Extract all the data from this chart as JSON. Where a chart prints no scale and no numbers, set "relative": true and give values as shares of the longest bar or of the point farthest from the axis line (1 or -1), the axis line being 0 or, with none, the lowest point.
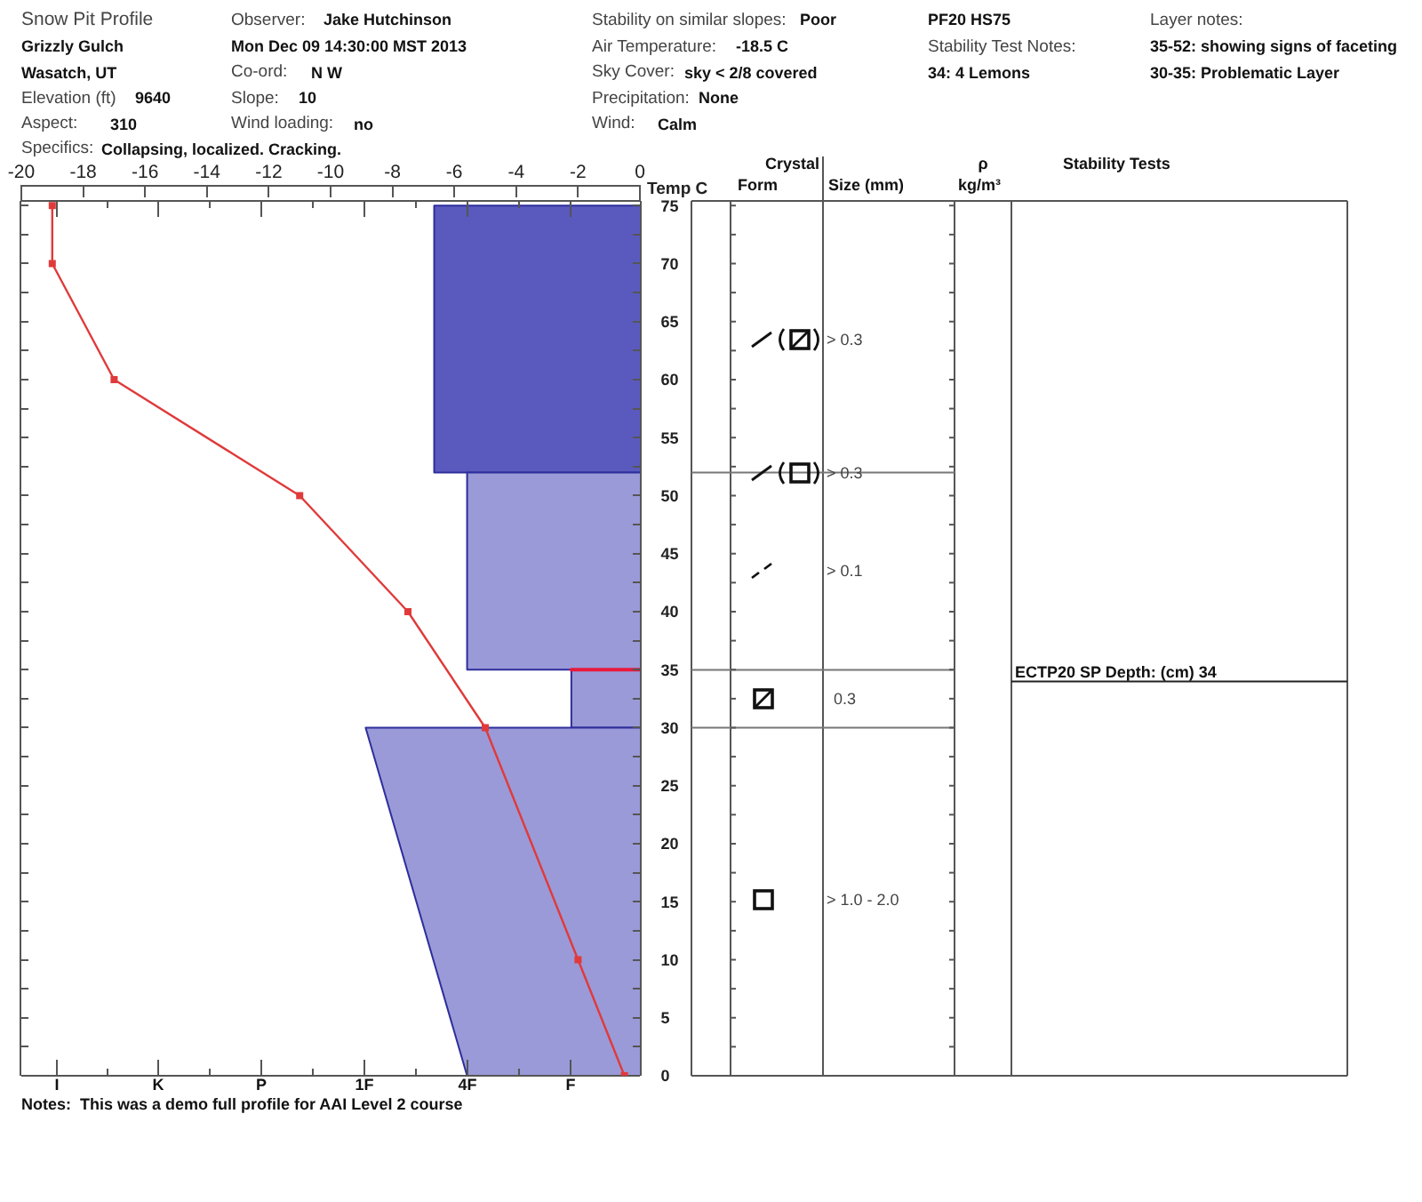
{
  "chart_data": [
    {
      "type": "area",
      "orientation": "horizontal",
      "relative": true,
      "tick_labels": false,
      "ylim": [
        0,
        75.4
      ],
      "yticks": [
        0,
        {
          "value": 2.5,
          "label": null
        },
        5,
        {
          "value": 7.5,
          "label": null
        },
        10,
        {
          "value": 12.5,
          "label": null
        },
        15,
        {
          "value": 17.5,
          "label": null
        },
        20,
        {
          "value": 22.5,
          "label": null
        },
        25,
        {
          "value": 27.5,
          "label": null
        },
        30,
        {
          "value": 32.5,
          "label": null
        },
        35,
        {
          "value": 37.5,
          "label": null
        },
        40,
        {
          "value": 42.5,
          "label": null
        },
        45,
        {
          "value": 47.5,
          "label": null
        },
        50,
        {
          "value": 52.5,
          "label": null
        },
        55,
        {
          "value": 57.5,
          "label": null
        },
        60,
        {
          "value": 62.5,
          "label": null
        },
        65,
        {
          "value": 67.5,
          "label": null
        },
        70,
        {
          "value": 72.5,
          "label": null
        },
        75
      ],
      "series": [
        {
          "color": "#5a5abe",
          "x": [
            75,
            52
          ],
          "values": [
            -0.75,
            -0.75
          ]
        },
        {
          "color": "#9a9ad8",
          "x": [
            52,
            35
          ],
          "values": [
            -0.63,
            -0.63
          ]
        },
        {
          "color": "#9a9ad8",
          "x": [
            35,
            30
          ],
          "values": [
            -0.25,
            -0.25
          ]
        },
        {
          "color": "#9a9ad8",
          "x": [
            30,
            0
          ],
          "values": [
            -1,
            -0.63
          ]
        },
        {
          "type": "line",
          "color": "#e8193c",
          "x": [
            35,
            35
          ],
          "values": [
            -0.25,
            0
          ]
        }
      ],
      "annotations": [
        "I",
        "K",
        "P",
        "1F",
        "4F",
        "F"
      ]
    },
    {
      "type": "line",
      "title": "Snow Pit Profile",
      "xlabel": "Temp C",
      "xlim": [
        -20,
        0
      ],
      "xticks": [
        -20,
        -18,
        -16,
        -14,
        -12,
        -10,
        -8,
        -6,
        -4,
        -2,
        0
      ],
      "ylim": [
        0,
        75.4
      ],
      "yticks": [
        0,
        {
          "value": 2.5,
          "label": null
        },
        5,
        {
          "value": 7.5,
          "label": null
        },
        10,
        {
          "value": 12.5,
          "label": null
        },
        15,
        {
          "value": 17.5,
          "label": null
        },
        20,
        {
          "value": 22.5,
          "label": null
        },
        25,
        {
          "value": 27.5,
          "label": null
        },
        30,
        {
          "value": 32.5,
          "label": null
        },
        35,
        {
          "value": 37.5,
          "label": null
        },
        40,
        {
          "value": 42.5,
          "label": null
        },
        45,
        {
          "value": 47.5,
          "label": null
        },
        50,
        {
          "value": 52.5,
          "label": null
        },
        55,
        {
          "value": 57.5,
          "label": null
        },
        60,
        {
          "value": 62.5,
          "label": null
        },
        65,
        {
          "value": 67.5,
          "label": null
        },
        70,
        {
          "value": 72.5,
          "label": null
        },
        75
      ],
      "marker": "square",
      "series": [
        {
          "color": "#e03a3a",
          "x": [
            -19,
            -19,
            -17,
            -11,
            -7.5,
            -5,
            -2,
            -0.5
          ],
          "values": [
            75,
            70,
            60,
            50,
            40,
            30,
            10,
            0
          ]
        }
      ],
      "annotations": [
        "Observer:",
        "Jake Hutchinson",
        "Stability on similar slopes:",
        "Poor",
        "PF20 HS75",
        "Layer notes:",
        "Grizzly Gulch",
        "Mon Dec 09 14:30:00 MST 2013",
        "Air Temperature:",
        "-18.5 C",
        "Stability Test Notes:",
        "35-52: showing signs of faceting",
        "Wasatch, UT",
        "Co-ord:",
        "N W",
        "Sky Cover:",
        "sky < 2/8 covered",
        "34: 4 Lemons",
        "30-35: Problematic Layer",
        "Elevation (ft)",
        "9640",
        "Slope:",
        "10",
        "Precipitation:",
        "None",
        "Aspect:",
        "310",
        "Wind loading:",
        "no",
        "Wind:",
        "Calm",
        "Specifics:",
        "Collapsing, localized. Cracking.",
        "Notes:",
        "This was a demo full profile for AAI Level 2 course"
      ]
    },
    {
      "type": "other",
      "annotations": [
        "Crystal",
        "ρ",
        "Stability Tests",
        "Form",
        "Size (mm)",
        "kg/m³",
        "> 0.3",
        "> 0.3",
        "> 0.1",
        "ECTP20 SP Depth: (cm) 34",
        "0.3",
        "> 1.0 - 2.0"
      ]
    }
  ]
}
